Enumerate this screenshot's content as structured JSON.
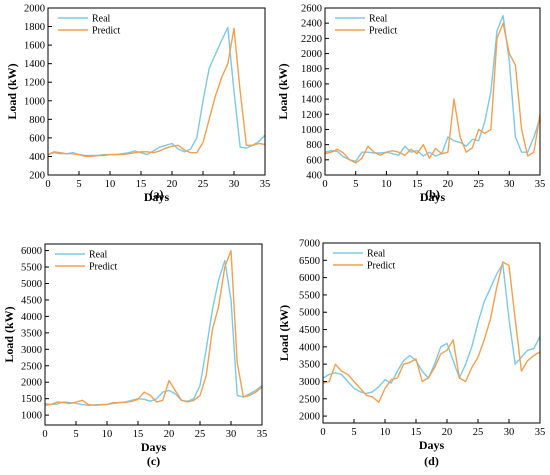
{
  "chart_data": [
    {
      "type": "line",
      "panel_label": "(a)",
      "xlabel": "Days",
      "ylabel": "Load (kW)",
      "xlim": [
        0,
        35
      ],
      "ylim": [
        200,
        2000
      ],
      "xticks": [
        0,
        5,
        10,
        15,
        20,
        25,
        30,
        35
      ],
      "yticks": [
        200,
        400,
        600,
        800,
        1000,
        1200,
        1400,
        1600,
        1800,
        2000
      ],
      "legend": "top-left",
      "grid": false,
      "series": [
        {
          "name": "Real",
          "color": "#7ec8e3",
          "x": [
            0,
            1,
            2,
            3,
            4,
            5,
            6,
            7,
            8,
            9,
            10,
            11,
            12,
            13,
            14,
            15,
            16,
            17,
            18,
            19,
            20,
            21,
            22,
            23,
            24,
            25,
            26,
            27,
            28,
            29,
            30,
            31,
            32,
            33,
            34,
            35
          ],
          "values": [
            420,
            440,
            430,
            430,
            440,
            420,
            410,
            410,
            410,
            420,
            420,
            420,
            430,
            440,
            460,
            440,
            420,
            460,
            500,
            520,
            540,
            480,
            450,
            480,
            600,
            1000,
            1350,
            1500,
            1650,
            1790,
            1100,
            500,
            490,
            520,
            560,
            630
          ]
        },
        {
          "name": "Predict",
          "color": "#f0a050",
          "x": [
            0,
            1,
            2,
            3,
            4,
            5,
            6,
            7,
            8,
            9,
            10,
            11,
            12,
            13,
            14,
            15,
            16,
            17,
            18,
            19,
            20,
            21,
            22,
            23,
            24,
            25,
            26,
            27,
            28,
            29,
            30,
            31,
            32,
            33,
            34,
            35
          ],
          "values": [
            420,
            450,
            440,
            430,
            430,
            420,
            400,
            400,
            410,
            410,
            420,
            420,
            420,
            430,
            440,
            450,
            450,
            440,
            460,
            490,
            510,
            520,
            470,
            440,
            440,
            550,
            800,
            1050,
            1250,
            1400,
            1780,
            1100,
            520,
            520,
            540,
            530
          ]
        }
      ]
    },
    {
      "type": "line",
      "panel_label": "(b)",
      "xlabel": "Days",
      "ylabel": "Load (kW)",
      "xlim": [
        0,
        35
      ],
      "ylim": [
        400,
        2600
      ],
      "xticks": [
        0,
        5,
        10,
        15,
        20,
        25,
        30,
        35
      ],
      "yticks": [
        400,
        600,
        800,
        1000,
        1200,
        1400,
        1600,
        1800,
        2000,
        2200,
        2400,
        2600
      ],
      "legend": "top-left",
      "grid": false,
      "series": [
        {
          "name": "Real",
          "color": "#7ec8e3",
          "x": [
            0,
            1,
            2,
            3,
            4,
            5,
            6,
            7,
            8,
            9,
            10,
            11,
            12,
            13,
            14,
            15,
            16,
            17,
            18,
            19,
            20,
            21,
            22,
            23,
            24,
            25,
            26,
            27,
            28,
            29,
            30,
            31,
            32,
            33,
            34,
            35
          ],
          "values": [
            700,
            720,
            710,
            640,
            600,
            580,
            700,
            700,
            690,
            690,
            700,
            680,
            660,
            780,
            700,
            720,
            650,
            700,
            650,
            680,
            900,
            850,
            830,
            780,
            870,
            850,
            1100,
            1500,
            2300,
            2500,
            1900,
            900,
            700,
            700,
            900,
            1150
          ]
        },
        {
          "name": "Predict",
          "color": "#f0a050",
          "x": [
            0,
            1,
            2,
            3,
            4,
            5,
            6,
            7,
            8,
            9,
            10,
            11,
            12,
            13,
            14,
            15,
            16,
            17,
            18,
            19,
            20,
            21,
            22,
            23,
            24,
            25,
            26,
            27,
            28,
            29,
            30,
            31,
            32,
            33,
            34,
            35
          ],
          "values": [
            680,
            700,
            740,
            690,
            600,
            560,
            620,
            780,
            700,
            660,
            700,
            720,
            700,
            660,
            740,
            680,
            800,
            620,
            750,
            680,
            700,
            1400,
            900,
            700,
            760,
            1000,
            950,
            1000,
            2200,
            2400,
            2000,
            1850,
            1000,
            650,
            700,
            1200
          ]
        }
      ]
    },
    {
      "type": "line",
      "panel_label": "(c)",
      "xlabel": "Days",
      "ylabel": "Load (kW)",
      "xlim": [
        0,
        35
      ],
      "ylim": [
        700,
        6200
      ],
      "xticks": [
        0,
        5,
        10,
        15,
        20,
        25,
        30,
        35
      ],
      "yticks": [
        1000,
        1500,
        2000,
        2500,
        3000,
        3500,
        4000,
        4500,
        5000,
        5500,
        6000
      ],
      "legend": "top-left",
      "grid": false,
      "series": [
        {
          "name": "Real",
          "color": "#7ec8e3",
          "x": [
            0,
            1,
            2,
            3,
            4,
            5,
            6,
            7,
            8,
            9,
            10,
            11,
            12,
            13,
            14,
            15,
            16,
            17,
            18,
            19,
            20,
            21,
            22,
            23,
            24,
            25,
            26,
            27,
            28,
            29,
            30,
            31,
            32,
            33,
            34,
            35
          ],
          "values": [
            1350,
            1320,
            1340,
            1400,
            1380,
            1360,
            1320,
            1300,
            1310,
            1320,
            1330,
            1350,
            1380,
            1400,
            1450,
            1500,
            1480,
            1420,
            1500,
            1700,
            1750,
            1650,
            1450,
            1420,
            1500,
            1900,
            3000,
            4200,
            5100,
            5700,
            4500,
            1600,
            1550,
            1650,
            1750,
            1900
          ]
        },
        {
          "name": "Predict",
          "color": "#f0a050",
          "x": [
            0,
            1,
            2,
            3,
            4,
            5,
            6,
            7,
            8,
            9,
            10,
            11,
            12,
            13,
            14,
            15,
            16,
            17,
            18,
            19,
            20,
            21,
            22,
            23,
            24,
            25,
            26,
            27,
            28,
            29,
            30,
            31,
            32,
            33,
            34,
            35
          ],
          "values": [
            1300,
            1330,
            1400,
            1380,
            1350,
            1400,
            1450,
            1320,
            1300,
            1310,
            1320,
            1380,
            1380,
            1390,
            1420,
            1480,
            1700,
            1600,
            1400,
            1450,
            2050,
            1750,
            1450,
            1400,
            1450,
            1600,
            2200,
            3600,
            4300,
            5500,
            6000,
            2600,
            1550,
            1600,
            1700,
            1850
          ]
        }
      ]
    },
    {
      "type": "line",
      "panel_label": "(d)",
      "xlabel": "Days",
      "ylabel": "Load (kW)",
      "xlim": [
        0,
        35
      ],
      "ylim": [
        1800,
        7000
      ],
      "xticks": [
        0,
        5,
        10,
        15,
        20,
        25,
        30,
        35
      ],
      "yticks": [
        2000,
        2500,
        3000,
        3500,
        4000,
        4500,
        5000,
        5500,
        6000,
        6500,
        7000
      ],
      "legend": "top-left",
      "grid": false,
      "series": [
        {
          "name": "Real",
          "color": "#7ec8e3",
          "x": [
            0,
            1,
            2,
            3,
            4,
            5,
            6,
            7,
            8,
            9,
            10,
            11,
            12,
            13,
            14,
            15,
            16,
            17,
            18,
            19,
            20,
            21,
            22,
            23,
            24,
            25,
            26,
            27,
            28,
            29,
            30,
            31,
            32,
            33,
            34,
            35
          ],
          "values": [
            3100,
            3200,
            3250,
            3200,
            3000,
            2800,
            2700,
            2650,
            2700,
            2850,
            3050,
            2950,
            3300,
            3600,
            3750,
            3600,
            3300,
            3100,
            3500,
            4000,
            4100,
            3600,
            3100,
            3500,
            4000,
            4700,
            5300,
            5700,
            6100,
            6400,
            4800,
            3500,
            3700,
            3900,
            3950,
            4300
          ]
        },
        {
          "name": "Predict",
          "color": "#f0a050",
          "x": [
            0,
            1,
            2,
            3,
            4,
            5,
            6,
            7,
            8,
            9,
            10,
            11,
            12,
            13,
            14,
            15,
            16,
            17,
            18,
            19,
            20,
            21,
            22,
            23,
            24,
            25,
            26,
            27,
            28,
            29,
            30,
            31,
            32,
            33,
            34,
            35
          ],
          "values": [
            2950,
            3000,
            3500,
            3300,
            3200,
            3000,
            2800,
            2600,
            2550,
            2400,
            2800,
            3050,
            3100,
            3500,
            3550,
            3650,
            3000,
            3100,
            3400,
            3800,
            3900,
            4200,
            3100,
            3000,
            3400,
            3700,
            4200,
            4800,
            5700,
            6450,
            6350,
            4800,
            3300,
            3600,
            3750,
            3850
          ]
        }
      ]
    }
  ]
}
